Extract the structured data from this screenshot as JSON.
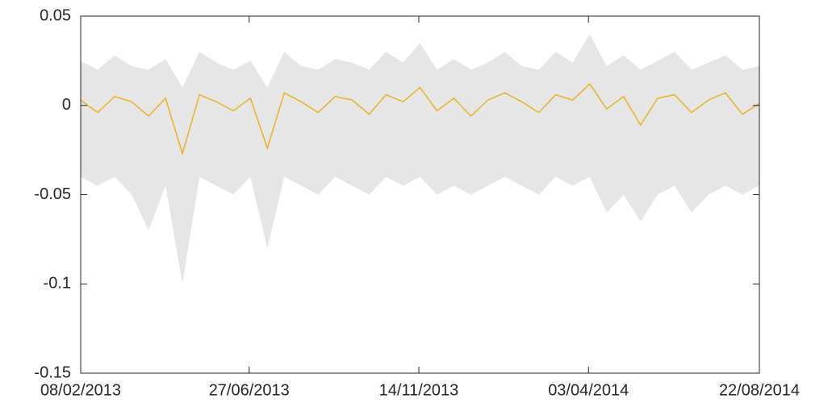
{
  "chart_data": {
    "type": "line",
    "x": [
      "2013-02-08",
      "2013-02-22",
      "2013-03-08",
      "2013-03-22",
      "2013-04-05",
      "2013-04-19",
      "2013-05-03",
      "2013-05-17",
      "2013-05-31",
      "2013-06-14",
      "2013-06-28",
      "2013-07-12",
      "2013-07-26",
      "2013-08-09",
      "2013-08-23",
      "2013-09-06",
      "2013-09-20",
      "2013-10-04",
      "2013-10-18",
      "2013-11-01",
      "2013-11-15",
      "2013-11-29",
      "2013-12-13",
      "2013-12-27",
      "2014-01-10",
      "2014-01-24",
      "2014-02-07",
      "2014-02-21",
      "2014-03-07",
      "2014-03-21",
      "2014-04-04",
      "2014-04-18",
      "2014-05-02",
      "2014-05-16",
      "2014-05-30",
      "2014-06-13",
      "2014-06-27",
      "2014-07-11",
      "2014-07-25",
      "2014-08-08",
      "2014-08-22"
    ],
    "series": [
      {
        "color": "#edb120",
        "values": [
          0.003,
          -0.004,
          0.005,
          0.002,
          -0.006,
          0.004,
          -0.027,
          0.006,
          0.002,
          -0.003,
          0.004,
          -0.024,
          0.007,
          0.002,
          -0.004,
          0.005,
          0.003,
          -0.005,
          0.006,
          0.002,
          0.01,
          -0.003,
          0.004,
          -0.006,
          0.003,
          0.007,
          0.002,
          -0.004,
          0.006,
          0.003,
          0.012,
          -0.002,
          0.005,
          -0.011,
          0.004,
          0.006,
          -0.004,
          0.003,
          0.007,
          -0.005,
          0.001
        ]
      }
    ],
    "band": {
      "color": "#e6e6e6",
      "upper": [
        0.025,
        0.02,
        0.028,
        0.022,
        0.02,
        0.026,
        0.01,
        0.03,
        0.024,
        0.02,
        0.025,
        0.01,
        0.03,
        0.022,
        0.02,
        0.026,
        0.024,
        0.02,
        0.03,
        0.024,
        0.035,
        0.02,
        0.026,
        0.02,
        0.024,
        0.03,
        0.022,
        0.02,
        0.03,
        0.024,
        0.04,
        0.022,
        0.028,
        0.02,
        0.025,
        0.03,
        0.02,
        0.024,
        0.028,
        0.02,
        0.022
      ],
      "lower": [
        -0.04,
        -0.045,
        -0.04,
        -0.05,
        -0.07,
        -0.045,
        -0.1,
        -0.04,
        -0.045,
        -0.05,
        -0.04,
        -0.08,
        -0.04,
        -0.045,
        -0.05,
        -0.04,
        -0.045,
        -0.05,
        -0.04,
        -0.045,
        -0.04,
        -0.05,
        -0.045,
        -0.05,
        -0.045,
        -0.04,
        -0.045,
        -0.05,
        -0.04,
        -0.045,
        -0.04,
        -0.06,
        -0.05,
        -0.065,
        -0.05,
        -0.045,
        -0.06,
        -0.05,
        -0.045,
        -0.05,
        -0.045
      ]
    },
    "xlim": [
      "2013-02-08",
      "2014-08-22"
    ],
    "xticks": [
      {
        "value": "2013-02-08",
        "label": "08/02/2013"
      },
      {
        "value": "2013-06-27",
        "label": "27/06/2013"
      },
      {
        "value": "2013-11-14",
        "label": "14/11/2013"
      },
      {
        "value": "2014-04-03",
        "label": "03/04/2014"
      },
      {
        "value": "2014-08-22",
        "label": "22/08/2014"
      }
    ],
    "ylim": [
      -0.15,
      0.05
    ],
    "yticks": [
      0.05,
      0,
      -0.05,
      -0.1,
      -0.15
    ]
  }
}
